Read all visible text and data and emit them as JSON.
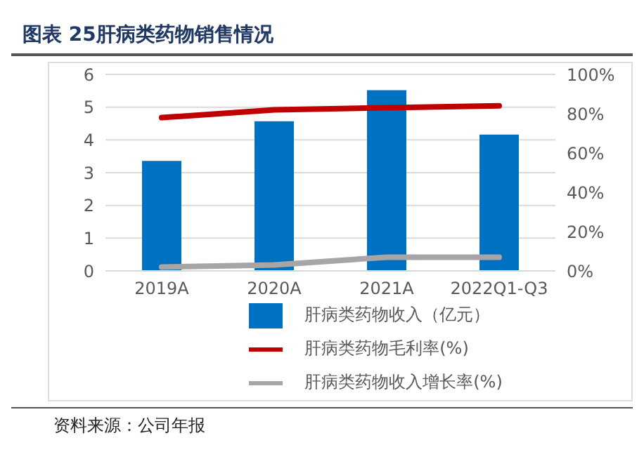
{
  "chart_data": {
    "type": "bar",
    "title": "图表 25肝病类药物销售情况",
    "categories": [
      "2019A",
      "2020A",
      "2021A",
      "2022Q1-Q3"
    ],
    "series": [
      {
        "name": "肝病类药物收入（亿元）",
        "color": "#0070c0",
        "values": [
          3.36,
          4.57,
          5.52,
          4.16
        ]
      },
      {
        "name": "肝病类药物毛利率(%)",
        "type": "line",
        "axis": "y2",
        "color": "#c00000",
        "values": [
          78,
          82,
          83,
          84
        ]
      },
      {
        "name": "肝病类药物收入增长率(%)",
        "type": "line",
        "axis": "y2",
        "color": "#a6a6a6",
        "values": [
          2,
          3,
          7,
          7
        ]
      }
    ],
    "ylim": [
      0,
      6
    ],
    "yticks": [
      0,
      1,
      2,
      3,
      4,
      5,
      6
    ],
    "y2lim": [
      0,
      100
    ],
    "y2ticks": [
      {
        "value": 0,
        "label": "0%"
      },
      {
        "value": 20,
        "label": "20%"
      },
      {
        "value": 40,
        "label": "40%"
      },
      {
        "value": 60,
        "label": "60%"
      },
      {
        "value": 80,
        "label": "80%"
      },
      {
        "value": 100,
        "label": "100%"
      }
    ],
    "grid": "y",
    "legend": "bottom",
    "marker": "none",
    "annotations": [
      "资料来源：公司年报"
    ]
  }
}
